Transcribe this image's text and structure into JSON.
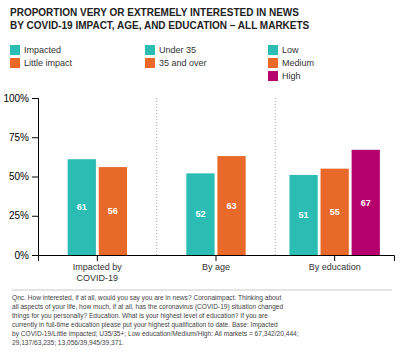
{
  "chart_data": {
    "type": "bar",
    "title": "PROPORTION VERY OR EXTREMELY INTERESTED IN NEWS\nBY COVID-19 IMPACT, AGE, AND EDUCATION – ALL MARKETS",
    "categories": [
      "Impacted by\nCOVID-19",
      "By age",
      "By education"
    ],
    "series": [
      {
        "name": "Impacted",
        "color": "#2BBDB4",
        "values": [
          61,
          null,
          null
        ]
      },
      {
        "name": "Little impact",
        "color": "#E8692A",
        "values": [
          56,
          null,
          null
        ]
      },
      {
        "name": "Under 35",
        "color": "#2BBDB4",
        "values": [
          null,
          52,
          null
        ]
      },
      {
        "name": "35 and over",
        "color": "#E8692A",
        "values": [
          null,
          63,
          null
        ]
      },
      {
        "name": "Low",
        "color": "#2BBDB4",
        "values": [
          null,
          null,
          51
        ]
      },
      {
        "name": "Medium",
        "color": "#E8692A",
        "values": [
          null,
          null,
          55
        ]
      },
      {
        "name": "High",
        "color": "#B5006E",
        "values": [
          null,
          null,
          67
        ]
      }
    ],
    "ylim": [
      0,
      100
    ],
    "yticks": [
      {
        "value": 0,
        "label": "0%"
      },
      {
        "value": 25,
        "label": "25%"
      },
      {
        "value": 50,
        "label": "50%"
      },
      {
        "value": 75,
        "label": "75%"
      },
      {
        "value": 100,
        "label": "100%"
      }
    ],
    "grid": false,
    "legend": "top",
    "data_labels": true,
    "annotations": [
      "Qnc. How interested, if at all, would you say you are in news? Coronaimpact. Thinking about\nall aspects of your life, how much, if at all, has the coronavirus (COVID-19) situation changed\nthings for you personally? Education. What is your highest level of education? If you are\ncurrently in full-time education please put your highest qualification to date. Base: Impacted\nby COVID-19/Little impacted; U35/35+; Low education/Medium/High: All markets = 67,342/20,444;\n29,137/63,235; 13,056/39,945/39,371."
    ]
  }
}
